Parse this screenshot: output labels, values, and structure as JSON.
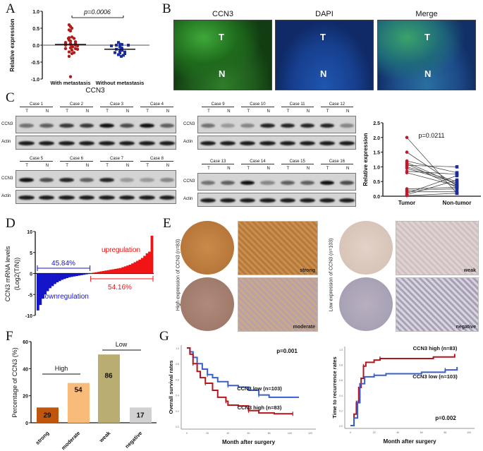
{
  "panel_labels": {
    "a": "A",
    "b": "B",
    "c": "C",
    "d": "D",
    "e": "E",
    "f": "F",
    "g": "G"
  },
  "panel_b": {
    "titles": [
      "CCN3",
      "DAPI",
      "Merge"
    ],
    "tumor_marker": "T",
    "normal_marker": "N"
  },
  "panel_c": {
    "groups": [
      {
        "cases": [
          "Case 1",
          "Case 2",
          "Case 3",
          "Case 4"
        ]
      },
      {
        "cases": [
          "Case 5",
          "Case 6",
          "Case 7",
          "Case 8"
        ]
      },
      {
        "cases": [
          "Case 9",
          "Case 10",
          "Case 11",
          "Case 12"
        ]
      },
      {
        "cases": [
          "Case 13",
          "Case 14",
          "Case 15",
          "Case 16"
        ]
      }
    ],
    "lanes": [
      "T",
      "N"
    ],
    "rows": [
      "CCN3",
      "Actin"
    ]
  },
  "panel_e": {
    "high_label": "High expression of CCN3 (n=83)",
    "low_label": "Low expression of CCN3 (n=103)",
    "intensities": [
      "strong",
      "moderate",
      "weak",
      "negative"
    ]
  },
  "chart_data": [
    {
      "panel": "A",
      "type": "scatter",
      "ylabel": "Relative expression",
      "xlabel": "CCN3",
      "categories": [
        "With metastasis",
        "Without metastasis"
      ],
      "ylim": [
        -1.0,
        1.0
      ],
      "yticks": [
        "1.0",
        "0.5",
        "0.0",
        "-0.5",
        "-1.0"
      ],
      "annotation": "p=0.0006",
      "colors": [
        "#b01c1c",
        "#1c2c9c"
      ],
      "series": [
        {
          "values": [
            0.6,
            0.55,
            0.5,
            0.45,
            0.42,
            0.24,
            0.22,
            0.2,
            0.2,
            0.15,
            0.12,
            0.1,
            0.08,
            0.05,
            0.05,
            0.03,
            0.02,
            0,
            0,
            -0.02,
            -0.03,
            -0.05,
            -0.08,
            -0.1,
            -0.1,
            -0.12,
            -0.15,
            -0.2,
            -0.22,
            -0.25,
            -0.33,
            -0.93
          ],
          "mean": 0.02
        },
        {
          "values": [
            0.08,
            0.03,
            0.02,
            0.02,
            0,
            0,
            -0.02,
            -0.05,
            -0.08,
            -0.1,
            -0.12,
            -0.15,
            -0.15,
            -0.18,
            -0.2,
            -0.22,
            -0.23,
            -0.25,
            -0.28,
            -0.3,
            -0.33
          ],
          "mean": -0.12
        }
      ]
    },
    {
      "panel": "C",
      "type": "line",
      "ylabel": "Relative expression",
      "categories": [
        "Tumor",
        "Non-tumor"
      ],
      "ylim": [
        0,
        2.5
      ],
      "yticks": [
        "0.0",
        "0.5",
        "1.0",
        "1.5",
        "2.0",
        "2.5"
      ],
      "annotation": "p=0.0211",
      "colors": [
        "#c0182a",
        "#1c2c9c"
      ],
      "pairs": {
        "tumor": [
          2.0,
          1.5,
          1.2,
          1.15,
          1.1,
          1.05,
          1.0,
          0.95,
          0.85,
          0.8,
          0.25,
          0.2,
          0.15,
          0.1,
          0.05,
          0.02
        ],
        "non_tumor": [
          0.1,
          0.35,
          0.8,
          0.4,
          0.3,
          1.0,
          0.5,
          0.45,
          0.75,
          0.35,
          0.3,
          0.25,
          0.15,
          0.7,
          0.55,
          0.1
        ]
      }
    },
    {
      "panel": "D",
      "type": "bar",
      "ylabel": "CCN3 mRNA levels",
      "ylabel2": "(Log2(T/N))",
      "ylim": [
        -10,
        10
      ],
      "yticks": [
        "10",
        "5",
        "0",
        "-5",
        "-10"
      ],
      "values": [
        -8.8,
        -7.5,
        -6,
        -5,
        -4.2,
        -3.5,
        -3,
        -2.5,
        -2.1,
        -1.8,
        -1.5,
        -1.3,
        -1.1,
        -0.9,
        -0.8,
        -0.7,
        -0.6,
        -0.5,
        -0.4,
        -0.3,
        -0.2,
        -0.1,
        0.1,
        0.2,
        0.3,
        0.4,
        0.5,
        0.6,
        0.7,
        0.8,
        0.9,
        1.0,
        1.1,
        1.2,
        1.3,
        1.5,
        1.7,
        1.9,
        2.1,
        2.4,
        2.7,
        3.0,
        3.3,
        3.7,
        4.2,
        4.8,
        5.2,
        9.0
      ],
      "annotations": {
        "down_pct": "45.84%",
        "up_pct": "54.16%",
        "down_label": "downregulation",
        "up_label": "upregulation"
      },
      "colors": {
        "down": "#1414c8",
        "up": "#f01414"
      }
    },
    {
      "panel": "F",
      "type": "bar",
      "ylabel": "Percentage of CCN3 (%)",
      "ylim": [
        0,
        60
      ],
      "yticks": [
        "60",
        "40",
        "20",
        "0"
      ],
      "categories": [
        "strong",
        "moderate",
        "weak",
        "negative"
      ],
      "values": [
        11.3,
        29.4,
        50.5,
        11.3
      ],
      "data_labels": [
        "29",
        "54",
        "86",
        "17"
      ],
      "colors": [
        "#c0560e",
        "#f9bb7a",
        "#b9ad72",
        "#d1d1d1"
      ],
      "groups": {
        "high": "High",
        "low": "Low"
      }
    },
    {
      "panel": "G-left",
      "type": "line",
      "ylabel": "Overall survival rates",
      "xlabel": "Month after surgery",
      "xlim": [
        0,
        120
      ],
      "ylim": [
        0,
        1
      ],
      "xticks": [
        "0",
        "20",
        "40",
        "60",
        "80",
        "100",
        "120"
      ],
      "yticks": [
        "0.0",
        "0.2",
        "0.4",
        "0.6",
        "0.8",
        "1.0"
      ],
      "annotation": "p=0.001",
      "series": [
        {
          "name": "CCN3 low (n=103)",
          "color": "#3a5fcd",
          "x": [
            0,
            3,
            6,
            10,
            15,
            20,
            25,
            30,
            40,
            50,
            60,
            70,
            80,
            109
          ],
          "y": [
            1,
            0.95,
            0.88,
            0.8,
            0.73,
            0.66,
            0.62,
            0.57,
            0.52,
            0.5,
            0.46,
            0.4,
            0.37,
            0.37
          ]
        },
        {
          "name": "CCN3 high (n=83)",
          "color": "#b5161c",
          "x": [
            0,
            3,
            6,
            10,
            13,
            18,
            25,
            30,
            38,
            40,
            50,
            60,
            70,
            85,
            103
          ],
          "y": [
            1,
            0.92,
            0.8,
            0.7,
            0.62,
            0.55,
            0.46,
            0.37,
            0.32,
            0.27,
            0.26,
            0.2,
            0.17,
            0.16,
            0.16
          ]
        }
      ]
    },
    {
      "panel": "G-right",
      "type": "line",
      "ylabel": "Time to recurrence rates",
      "xlabel": "Month after surgery",
      "xlim": [
        0,
        100
      ],
      "ylim": [
        0,
        1
      ],
      "xticks": [
        "0",
        "20",
        "40",
        "60",
        "80",
        "100"
      ],
      "yticks": [
        "0.0",
        "0.2",
        "0.4",
        "0.6",
        "0.8",
        "1.0"
      ],
      "annotation": "p=0.002",
      "series": [
        {
          "name": "CCN3 high (n=83)",
          "color": "#b5161c",
          "x": [
            0,
            3,
            5,
            7,
            9,
            11,
            13,
            20,
            25,
            70,
            88
          ],
          "y": [
            0,
            0.15,
            0.3,
            0.5,
            0.62,
            0.78,
            0.83,
            0.86,
            0.88,
            0.9,
            0.94
          ]
        },
        {
          "name": "CCN3 low (n=103)",
          "color": "#3a5fcd",
          "x": [
            0,
            3,
            6,
            8,
            12,
            20,
            30,
            60,
            80,
            90
          ],
          "y": [
            0,
            0.1,
            0.3,
            0.55,
            0.64,
            0.66,
            0.68,
            0.7,
            0.73,
            0.77
          ]
        }
      ]
    }
  ]
}
